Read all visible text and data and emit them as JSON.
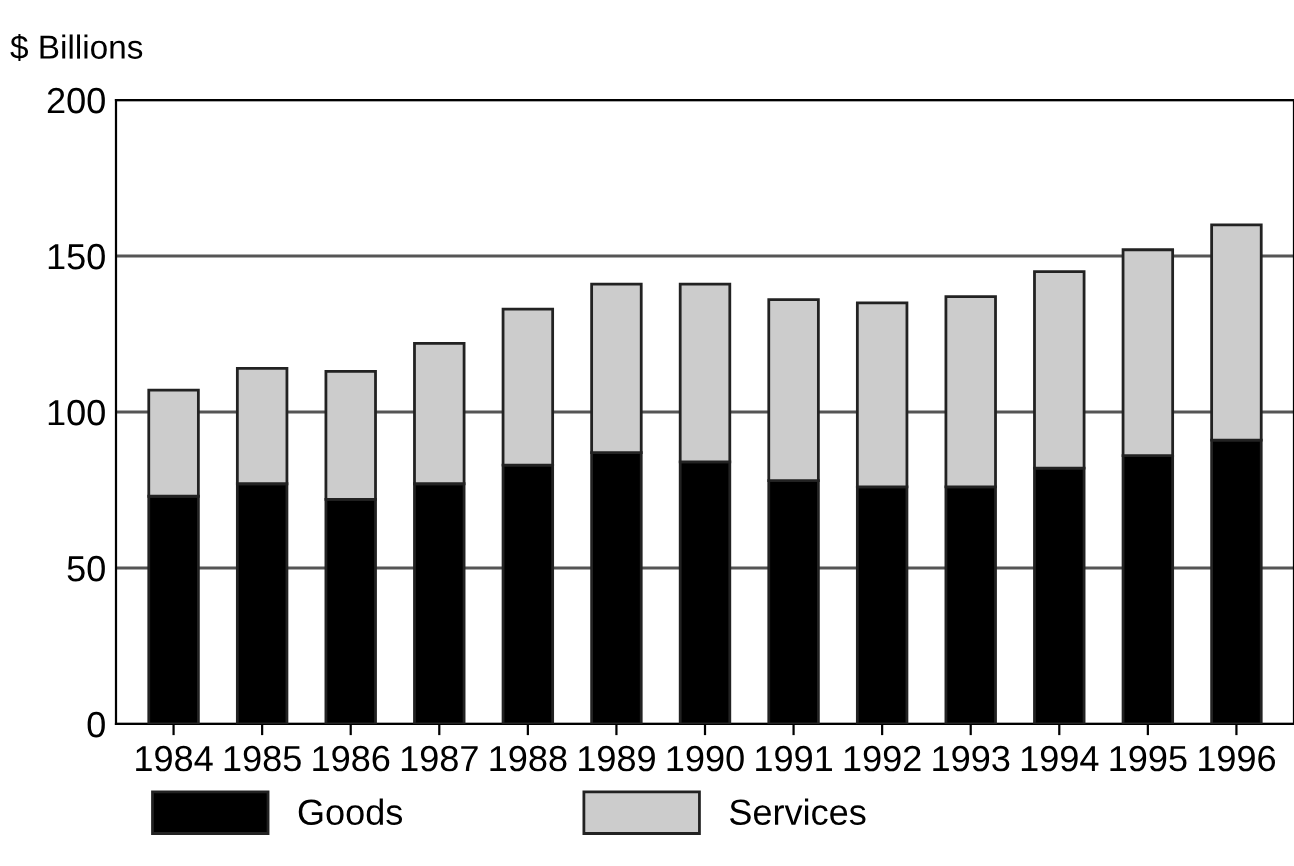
{
  "chart_data": {
    "type": "bar",
    "stacked": true,
    "ylabel": "$ Billions",
    "categories": [
      "1984",
      "1985",
      "1986",
      "1987",
      "1988",
      "1989",
      "1990",
      "1991",
      "1992",
      "1993",
      "1994",
      "1995",
      "1996"
    ],
    "series": [
      {
        "name": "Goods",
        "color": "#000000",
        "values": [
          73,
          77,
          72,
          77,
          83,
          87,
          84,
          78,
          76,
          76,
          82,
          86,
          91
        ]
      },
      {
        "name": "Services",
        "color": "#cccccc",
        "values": [
          34,
          37,
          41,
          45,
          50,
          54,
          57,
          58,
          59,
          61,
          63,
          66,
          69
        ]
      }
    ],
    "ylim": [
      0,
      200
    ],
    "yticks": [
      0,
      50,
      100,
      150,
      200
    ],
    "grid": "y",
    "legend": "bottom left"
  }
}
